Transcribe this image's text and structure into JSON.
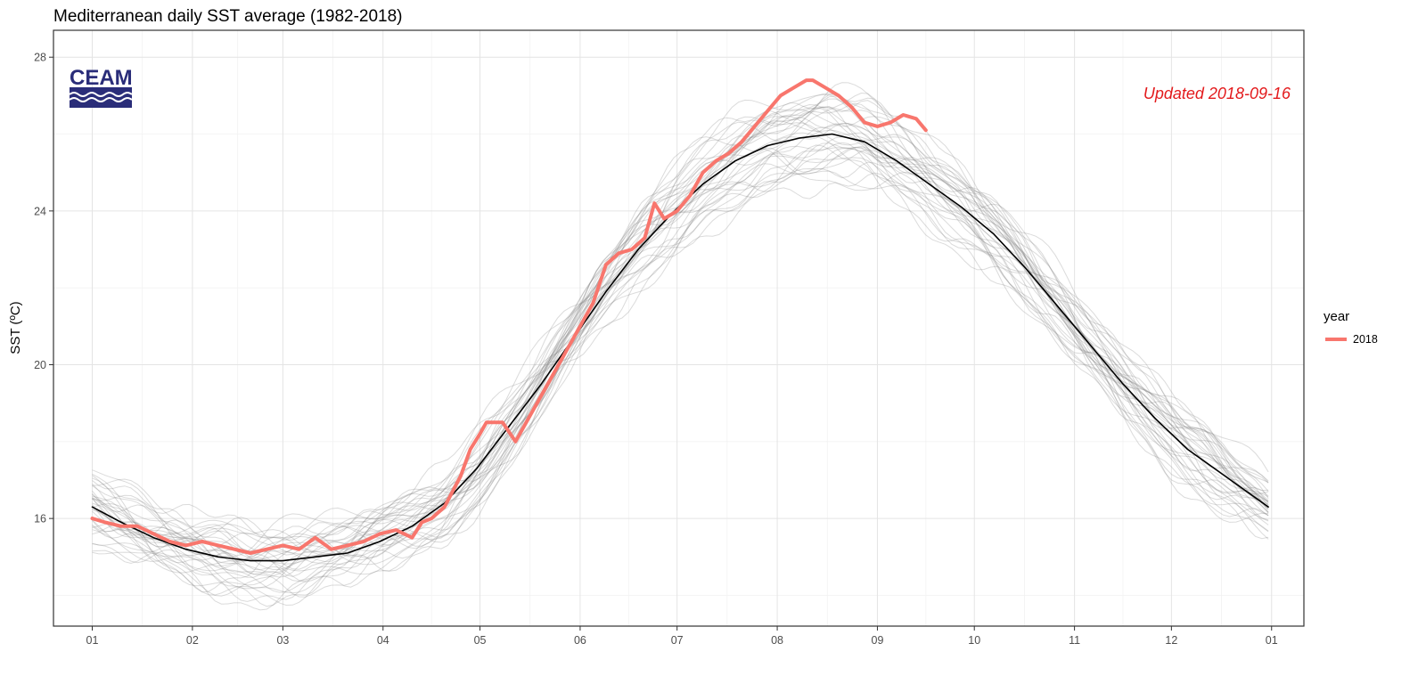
{
  "chart_data": {
    "type": "line",
    "title": "Mediterranean daily SST average (1982-2018)",
    "xlabel": "",
    "ylabel": "SST (ºC)",
    "x_tick_labels": [
      "01",
      "02",
      "03",
      "04",
      "05",
      "06",
      "07",
      "08",
      "09",
      "10",
      "11",
      "12",
      "01"
    ],
    "y_ticks": [
      16,
      20,
      24,
      28
    ],
    "ylim": [
      13.2,
      28.7
    ],
    "xlim_day_of_year": [
      -11,
      376
    ],
    "grid": true,
    "legend": {
      "title": "year",
      "position": "right",
      "entries": [
        {
          "label": "2018",
          "color": "#f8766d"
        }
      ]
    },
    "annotation": {
      "text": "Updated 2018-09-16",
      "color": "#e31a1c",
      "position": "top-right"
    },
    "logo": {
      "text": "CEAM"
    },
    "colors": {
      "highlight": "#f8766d",
      "mean": "#000000",
      "historical": "#7f7f7f",
      "annotation": "#e31a1c",
      "logo_blue": "#2a2d79"
    },
    "series": [
      {
        "name": "2018",
        "role": "highlight",
        "x": [
          1,
          5,
          10,
          15,
          20,
          25,
          30,
          35,
          40,
          45,
          50,
          55,
          60,
          65,
          70,
          75,
          80,
          85,
          90,
          95,
          100,
          103,
          106,
          110,
          115,
          118,
          121,
          123,
          128,
          132,
          136,
          140,
          144,
          148,
          152,
          156,
          160,
          164,
          168,
          172,
          175,
          178,
          182,
          186,
          190,
          194,
          198,
          202,
          206,
          210,
          214,
          218,
          222,
          224,
          228,
          232,
          236,
          240,
          244,
          248,
          252,
          256,
          259
        ],
        "values": [
          16.0,
          15.9,
          15.8,
          15.8,
          15.6,
          15.4,
          15.3,
          15.4,
          15.3,
          15.2,
          15.1,
          15.2,
          15.3,
          15.2,
          15.5,
          15.2,
          15.3,
          15.4,
          15.6,
          15.7,
          15.5,
          15.9,
          16.0,
          16.3,
          17.1,
          17.8,
          18.2,
          18.5,
          18.5,
          18.0,
          18.6,
          19.2,
          19.8,
          20.4,
          21.0,
          21.6,
          22.6,
          22.9,
          23.0,
          23.3,
          24.2,
          23.8,
          24.0,
          24.4,
          25.0,
          25.3,
          25.5,
          25.8,
          26.2,
          26.6,
          27.0,
          27.2,
          27.4,
          27.4,
          27.2,
          27.0,
          26.7,
          26.3,
          26.2,
          26.3,
          26.5,
          26.4,
          26.1
        ]
      },
      {
        "name": "",
        "role": "mean",
        "x": [
          1,
          10,
          20,
          30,
          40,
          50,
          60,
          70,
          80,
          90,
          100,
          110,
          120,
          130,
          140,
          150,
          160,
          170,
          180,
          190,
          200,
          210,
          220,
          230,
          240,
          250,
          260,
          270,
          280,
          290,
          300,
          310,
          320,
          330,
          340,
          350,
          360,
          365
        ],
        "values": [
          16.3,
          15.9,
          15.5,
          15.2,
          15.0,
          14.9,
          14.9,
          15.0,
          15.1,
          15.4,
          15.8,
          16.4,
          17.3,
          18.4,
          19.5,
          20.7,
          21.9,
          23.0,
          23.9,
          24.7,
          25.3,
          25.7,
          25.9,
          26.0,
          25.8,
          25.3,
          24.7,
          24.1,
          23.4,
          22.5,
          21.5,
          20.5,
          19.5,
          18.6,
          17.8,
          17.2,
          16.6,
          16.3
        ]
      }
    ]
  }
}
